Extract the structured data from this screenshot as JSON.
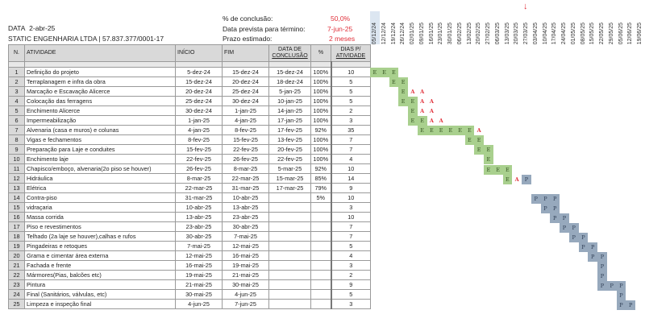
{
  "header": {
    "date_label": "DATA",
    "date_value": "2-abr-25",
    "company": "STATIC ENGENHARIA LTDA  | 57.837.377/0001-17",
    "completion_label": "% de conclusão:",
    "completion_value": "50,0%",
    "end_label": "Data prevista para término:",
    "end_value": "7-jun-25",
    "term_label": "Prazo estimado:",
    "term_value": "2 meses"
  },
  "colors": {
    "executed": "#a9d08e",
    "planned": "#97a9bd",
    "delay": "#e0303a"
  },
  "columns": {
    "n": "N.",
    "activity": "ATIVIDADE",
    "start": "INÍCIO",
    "end": "FIM",
    "done_1": "DATA DE",
    "done_2": "CONCLUSÃO",
    "pct": "%",
    "days_1": "DIAS P/",
    "days_2": "ATIVIDADE"
  },
  "weeks": [
    "05/12/24",
    "12/12/24",
    "19/12/24",
    "26/12/24",
    "02/01/25",
    "09/01/25",
    "16/01/25",
    "23/01/25",
    "30/01/25",
    "06/02/25",
    "13/02/25",
    "20/02/25",
    "27/02/25",
    "06/03/25",
    "13/03/25",
    "20/03/25",
    "27/03/25",
    "03/04/25",
    "10/04/25",
    "17/04/25",
    "24/04/25",
    "01/05/25",
    "08/05/25",
    "15/05/25",
    "22/05/25",
    "29/05/25",
    "05/06/25",
    "12/06/25",
    "19/06/25"
  ],
  "current_week_index": 16,
  "rows": [
    {
      "n": "1",
      "activity": "Definição do projeto",
      "start": "5-dez-24",
      "end": "15-dez-24",
      "done": "15-dez-24",
      "pct": "100%",
      "days": "10",
      "gantt_start": 0,
      "gantt": "EEE"
    },
    {
      "n": "2",
      "activity": "Terraplanagem e infra da obra",
      "start": "15-dez-24",
      "end": "20-dez-24",
      "done": "18-dez-24",
      "pct": "100%",
      "days": "5",
      "gantt_start": 2,
      "gantt": "EE"
    },
    {
      "n": "3",
      "activity": "Marcação e Escavação Alicerce",
      "start": "20-dez-24",
      "end": "25-dez-24",
      "done": "5-jan-25",
      "pct": "100%",
      "days": "5",
      "gantt_start": 3,
      "gantt": "EAA"
    },
    {
      "n": "4",
      "activity": "Colocação das ferragens",
      "start": "25-dez-24",
      "end": "30-dez-24",
      "done": "10-jan-25",
      "pct": "100%",
      "days": "5",
      "gantt_start": 3,
      "gantt": "EEAA"
    },
    {
      "n": "5",
      "activity": "Enchimento Alicerce",
      "start": "30-dez-24",
      "end": "1-jan-25",
      "done": "14-jan-25",
      "pct": "100%",
      "days": "2",
      "gantt_start": 4,
      "gantt": "EAA"
    },
    {
      "n": "6",
      "activity": "Impermeabilização",
      "start": "1-jan-25",
      "end": "4-jan-25",
      "done": "17-jan-25",
      "pct": "100%",
      "days": "3",
      "gantt_start": 4,
      "gantt": "EEAA"
    },
    {
      "n": "7",
      "activity": "Alvenaria (casa e muros) e colunas",
      "start": "4-jan-25",
      "end": "8-fev-25",
      "done": "17-fev-25",
      "pct": "92%",
      "days": "35",
      "gantt_start": 5,
      "gantt": "EEEEEEA"
    },
    {
      "n": "8",
      "activity": "Vigas e fechamentos",
      "start": "8-fev-25",
      "end": "15-fev-25",
      "done": "13-fev-25",
      "pct": "100%",
      "days": "7",
      "gantt_start": 10,
      "gantt": "EE"
    },
    {
      "n": "9",
      "activity": "Preparação para Laje e conduites",
      "start": "15-fev-25",
      "end": "22-fev-25",
      "done": "20-fev-25",
      "pct": "100%",
      "days": "7",
      "gantt_start": 11,
      "gantt": "EE"
    },
    {
      "n": "10",
      "activity": "Enchimento laje",
      "start": "22-fev-25",
      "end": "26-fev-25",
      "done": "22-fev-25",
      "pct": "100%",
      "days": "4",
      "gantt_start": 12,
      "gantt": "E"
    },
    {
      "n": "11",
      "activity": "Chapisco/emboço, alvenaria(2o piso se houver)",
      "start": "26-fev-25",
      "end": "8-mar-25",
      "done": "5-mar-25",
      "pct": "92%",
      "days": "10",
      "gantt_start": 12,
      "gantt": "EEE"
    },
    {
      "n": "12",
      "activity": "Hidráulica",
      "start": "8-mar-25",
      "end": "22-mar-25",
      "done": "15-mar-25",
      "pct": "85%",
      "days": "14",
      "gantt_start": 14,
      "gantt": "EAP"
    },
    {
      "n": "13",
      "activity": "Elétrica",
      "start": "22-mar-25",
      "end": "31-mar-25",
      "done": "17-mar-25",
      "pct": "79%",
      "days": "9",
      "gantt_start": 0,
      "gantt": ""
    },
    {
      "n": "14",
      "activity": "Contra-piso",
      "start": "31-mar-25",
      "end": "10-abr-25",
      "done": "",
      "pct": "5%",
      "days": "10",
      "gantt_start": 17,
      "gantt": "PPP"
    },
    {
      "n": "15",
      "activity": "vidraçaria",
      "start": "10-abr-25",
      "end": "13-abr-25",
      "done": "",
      "pct": "",
      "days": "3",
      "gantt_start": 18,
      "gantt": "PP"
    },
    {
      "n": "16",
      "activity": "Massa corrida",
      "start": "13-abr-25",
      "end": "23-abr-25",
      "done": "",
      "pct": "",
      "days": "10",
      "gantt_start": 19,
      "gantt": "PP"
    },
    {
      "n": "17",
      "activity": "Piso e revestimentos",
      "start": "23-abr-25",
      "end": "30-abr-25",
      "done": "",
      "pct": "",
      "days": "7",
      "gantt_start": 20,
      "gantt": "PP"
    },
    {
      "n": "18",
      "activity": "Telhado (2a laje se houver),calhas e rufos",
      "start": "30-abr-25",
      "end": "7-mai-25",
      "done": "",
      "pct": "",
      "days": "7",
      "gantt_start": 21,
      "gantt": "PP"
    },
    {
      "n": "19",
      "activity": "Pingadeiras e retoques",
      "start": "7-mai-25",
      "end": "12-mai-25",
      "done": "",
      "pct": "",
      "days": "5",
      "gantt_start": 22,
      "gantt": "PP"
    },
    {
      "n": "20",
      "activity": "Grama e cimentar área externa",
      "start": "12-mai-25",
      "end": "16-mai-25",
      "done": "",
      "pct": "",
      "days": "4",
      "gantt_start": 23,
      "gantt": "PP"
    },
    {
      "n": "21",
      "activity": "Fachada e frente",
      "start": "16-mai-25",
      "end": "19-mai-25",
      "done": "",
      "pct": "",
      "days": "3",
      "gantt_start": 24,
      "gantt": "P"
    },
    {
      "n": "22",
      "activity": "Mármores(Pias, balcões etc)",
      "start": "19-mai-25",
      "end": "21-mai-25",
      "done": "",
      "pct": "",
      "days": "2",
      "gantt_start": 24,
      "gantt": "P"
    },
    {
      "n": "23",
      "activity": "Pintura",
      "start": "21-mai-25",
      "end": "30-mai-25",
      "done": "",
      "pct": "",
      "days": "9",
      "gantt_start": 24,
      "gantt": "PPP"
    },
    {
      "n": "24",
      "activity": "Final (Sanitários, válvulas, etc)",
      "start": "30-mai-25",
      "end": "4-jun-25",
      "done": "",
      "pct": "",
      "days": "5",
      "gantt_start": 26,
      "gantt": "P"
    },
    {
      "n": "25",
      "activity": "Limpeza e inspeção final",
      "start": "4-jun-25",
      "end": "7-jun-25",
      "done": "",
      "pct": "",
      "days": "3",
      "gantt_start": 26,
      "gantt": "PP"
    }
  ]
}
